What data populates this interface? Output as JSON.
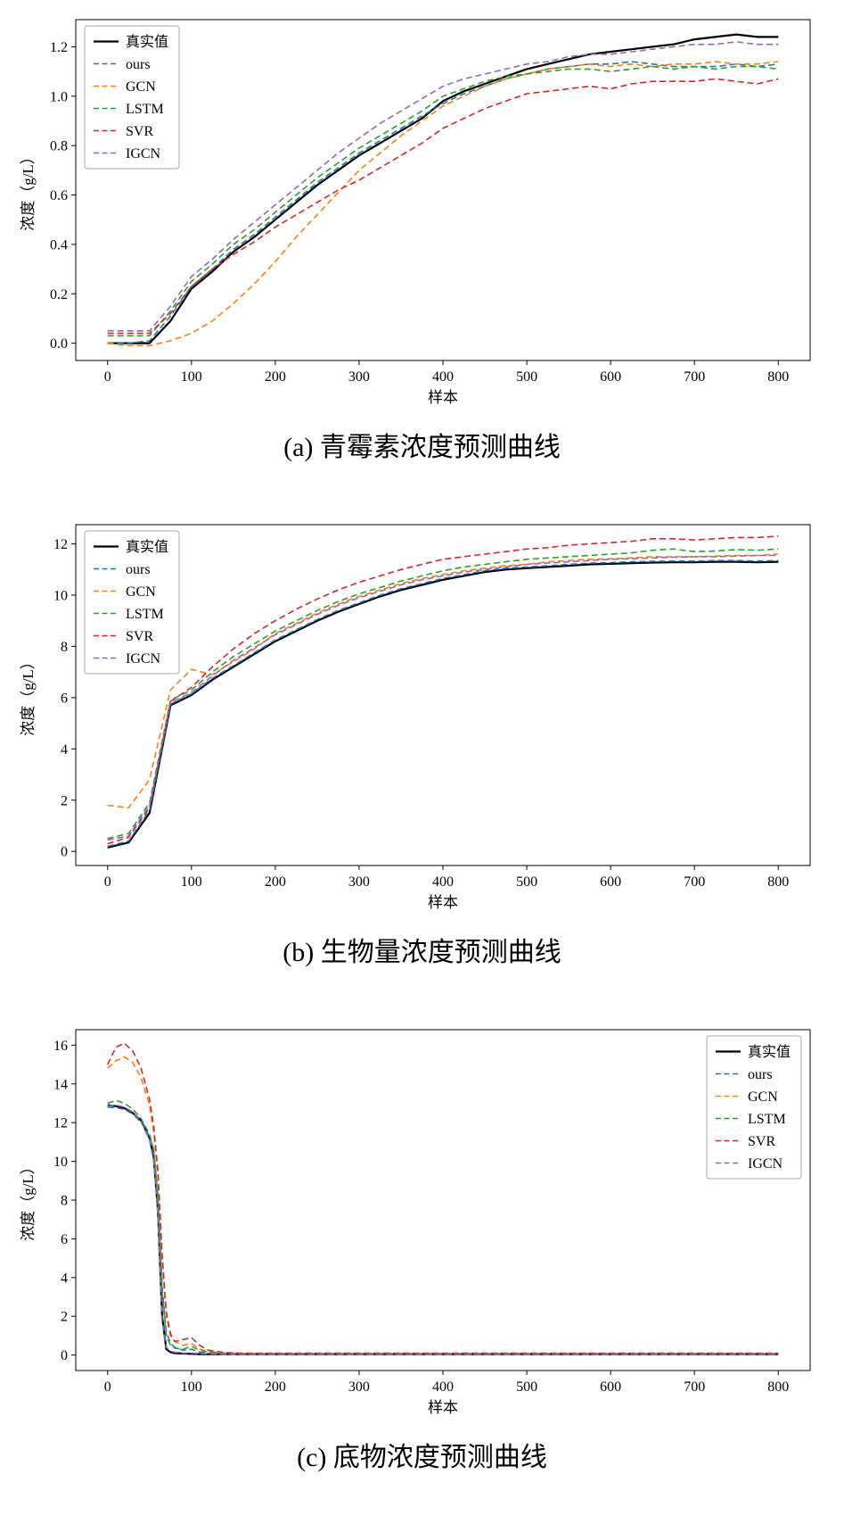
{
  "page": {
    "background": "#ffffff"
  },
  "palette": {
    "true_value": "#000000",
    "ours": "#1f77b4",
    "gcn": "#ff7f0e",
    "lstm": "#2ca02c",
    "svr": "#d62728",
    "igcn": "#9467bd"
  },
  "charts": [
    {
      "caption": "(a) 青霉素浓度预测曲线",
      "chart_data": {
        "type": "line",
        "title": "",
        "xlabel": "样本",
        "ylabel": "浓度（g/L）",
        "xlim": [
          -38,
          838
        ],
        "ylim": [
          -0.07,
          1.31
        ],
        "xticks": [
          0,
          100,
          200,
          300,
          400,
          500,
          600,
          700,
          800
        ],
        "yticks": [
          0,
          0.2,
          0.4,
          0.6,
          0.8,
          1.0,
          1.2
        ],
        "ytick_labels": [
          "0.0",
          "0.2",
          "0.4",
          "0.6",
          "0.8",
          "1.0",
          "1.2"
        ],
        "legend_loc": "upper-left",
        "grid": false,
        "x": [
          0,
          25,
          50,
          75,
          100,
          125,
          150,
          175,
          200,
          225,
          250,
          275,
          300,
          325,
          350,
          375,
          400,
          425,
          450,
          475,
          500,
          525,
          550,
          575,
          600,
          625,
          650,
          675,
          700,
          725,
          750,
          775,
          800
        ],
        "series": [
          {
            "name": "真实值",
            "color": "#000000",
            "dash": false,
            "width": 2.2,
            "y": [
              0.0,
              0.0,
              0.0,
              0.09,
              0.22,
              0.29,
              0.37,
              0.43,
              0.5,
              0.57,
              0.64,
              0.7,
              0.76,
              0.81,
              0.86,
              0.91,
              0.98,
              1.02,
              1.05,
              1.08,
              1.11,
              1.13,
              1.15,
              1.17,
              1.18,
              1.19,
              1.2,
              1.21,
              1.23,
              1.24,
              1.25,
              1.24,
              1.24
            ]
          },
          {
            "name": "ours",
            "color": "#1f77b4",
            "dash": true,
            "width": 1.6,
            "y": [
              0.0,
              0.0,
              0.01,
              0.11,
              0.23,
              0.3,
              0.38,
              0.44,
              0.51,
              0.58,
              0.65,
              0.71,
              0.77,
              0.82,
              0.87,
              0.92,
              0.97,
              1.01,
              1.04,
              1.07,
              1.09,
              1.11,
              1.12,
              1.13,
              1.13,
              1.14,
              1.13,
              1.12,
              1.12,
              1.12,
              1.13,
              1.12,
              1.13
            ]
          },
          {
            "name": "GCN",
            "color": "#ff7f0e",
            "dash": true,
            "width": 1.6,
            "y": [
              0.0,
              -0.01,
              -0.01,
              0.01,
              0.04,
              0.09,
              0.16,
              0.24,
              0.33,
              0.43,
              0.52,
              0.61,
              0.7,
              0.77,
              0.84,
              0.9,
              0.96,
              1.0,
              1.04,
              1.07,
              1.09,
              1.11,
              1.12,
              1.13,
              1.12,
              1.13,
              1.12,
              1.13,
              1.13,
              1.14,
              1.13,
              1.13,
              1.14
            ]
          },
          {
            "name": "LSTM",
            "color": "#2ca02c",
            "dash": true,
            "width": 1.6,
            "y": [
              0.03,
              0.03,
              0.03,
              0.13,
              0.25,
              0.32,
              0.4,
              0.46,
              0.53,
              0.6,
              0.67,
              0.73,
              0.79,
              0.84,
              0.89,
              0.94,
              1.0,
              1.03,
              1.06,
              1.08,
              1.09,
              1.1,
              1.11,
              1.11,
              1.1,
              1.11,
              1.12,
              1.11,
              1.12,
              1.11,
              1.12,
              1.12,
              1.11
            ]
          },
          {
            "name": "SVR",
            "color": "#d62728",
            "dash": true,
            "width": 1.6,
            "y": [
              0.04,
              0.04,
              0.04,
              0.12,
              0.23,
              0.3,
              0.36,
              0.41,
              0.47,
              0.52,
              0.57,
              0.62,
              0.66,
              0.71,
              0.76,
              0.81,
              0.87,
              0.91,
              0.95,
              0.98,
              1.01,
              1.02,
              1.03,
              1.04,
              1.03,
              1.05,
              1.06,
              1.06,
              1.06,
              1.07,
              1.06,
              1.05,
              1.07
            ]
          },
          {
            "name": "IGCN",
            "color": "#9467bd",
            "dash": true,
            "width": 1.6,
            "y": [
              0.05,
              0.05,
              0.05,
              0.15,
              0.27,
              0.34,
              0.42,
              0.49,
              0.56,
              0.63,
              0.7,
              0.77,
              0.83,
              0.89,
              0.94,
              0.99,
              1.04,
              1.07,
              1.09,
              1.11,
              1.13,
              1.14,
              1.16,
              1.17,
              1.17,
              1.18,
              1.19,
              1.2,
              1.21,
              1.21,
              1.22,
              1.21,
              1.21
            ]
          }
        ]
      }
    },
    {
      "caption": "(b) 生物量浓度预测曲线",
      "chart_data": {
        "type": "line",
        "title": "",
        "xlabel": "样本",
        "ylabel": "浓度（g/L）",
        "xlim": [
          -38,
          838
        ],
        "ylim": [
          -0.55,
          12.75
        ],
        "xticks": [
          0,
          100,
          200,
          300,
          400,
          500,
          600,
          700,
          800
        ],
        "yticks": [
          0,
          2,
          4,
          6,
          8,
          10,
          12
        ],
        "ytick_labels": [
          "0",
          "2",
          "4",
          "6",
          "8",
          "10",
          "12"
        ],
        "legend_loc": "upper-left",
        "grid": false,
        "x": [
          0,
          25,
          50,
          75,
          100,
          125,
          150,
          175,
          200,
          225,
          250,
          275,
          300,
          325,
          350,
          375,
          400,
          425,
          450,
          475,
          500,
          525,
          550,
          575,
          600,
          625,
          650,
          675,
          700,
          725,
          750,
          775,
          800
        ],
        "series": [
          {
            "name": "真实值",
            "color": "#000000",
            "dash": false,
            "width": 2.2,
            "y": [
              0.15,
              0.35,
              1.5,
              5.7,
              6.1,
              6.7,
              7.2,
              7.7,
              8.2,
              8.6,
              9.0,
              9.35,
              9.65,
              9.95,
              10.2,
              10.4,
              10.6,
              10.75,
              10.9,
              11.0,
              11.05,
              11.1,
              11.15,
              11.2,
              11.22,
              11.25,
              11.27,
              11.28,
              11.28,
              11.3,
              11.3,
              11.28,
              11.3
            ]
          },
          {
            "name": "ours",
            "color": "#1f77b4",
            "dash": true,
            "width": 1.6,
            "y": [
              0.2,
              0.4,
              1.6,
              5.75,
              6.15,
              6.75,
              7.25,
              7.75,
              8.25,
              8.65,
              9.05,
              9.4,
              9.7,
              10.0,
              10.25,
              10.45,
              10.65,
              10.8,
              10.95,
              11.05,
              11.1,
              11.15,
              11.2,
              11.25,
              11.27,
              11.3,
              11.32,
              11.33,
              11.33,
              11.35,
              11.35,
              11.33,
              11.35
            ]
          },
          {
            "name": "GCN",
            "color": "#ff7f0e",
            "dash": true,
            "width": 1.6,
            "y": [
              1.8,
              1.7,
              2.8,
              6.3,
              7.1,
              6.9,
              7.4,
              7.9,
              8.5,
              8.9,
              9.3,
              9.65,
              9.95,
              10.2,
              10.45,
              10.65,
              10.8,
              10.95,
              11.05,
              11.15,
              11.2,
              11.3,
              11.35,
              11.4,
              11.42,
              11.45,
              11.5,
              11.5,
              11.5,
              11.52,
              11.55,
              11.55,
              11.6
            ]
          },
          {
            "name": "LSTM",
            "color": "#2ca02c",
            "dash": true,
            "width": 1.6,
            "y": [
              0.5,
              0.7,
              1.9,
              5.9,
              6.3,
              7.0,
              7.6,
              8.1,
              8.6,
              9.0,
              9.4,
              9.75,
              10.05,
              10.3,
              10.55,
              10.75,
              10.95,
              11.1,
              11.2,
              11.3,
              11.4,
              11.45,
              11.5,
              11.55,
              11.6,
              11.65,
              11.75,
              11.8,
              11.7,
              11.72,
              11.78,
              11.75,
              11.8
            ]
          },
          {
            "name": "SVR",
            "color": "#d62728",
            "dash": true,
            "width": 1.6,
            "y": [
              0.3,
              0.55,
              1.7,
              5.85,
              6.4,
              7.2,
              7.9,
              8.5,
              9.0,
              9.45,
              9.85,
              10.2,
              10.5,
              10.75,
              11.0,
              11.2,
              11.4,
              11.5,
              11.6,
              11.7,
              11.8,
              11.85,
              11.95,
              12.0,
              12.05,
              12.1,
              12.2,
              12.2,
              12.15,
              12.2,
              12.25,
              12.25,
              12.3
            ]
          },
          {
            "name": "IGCN",
            "color": "#9467bd",
            "dash": true,
            "width": 1.6,
            "y": [
              0.45,
              0.6,
              1.8,
              5.8,
              6.2,
              6.85,
              7.45,
              7.95,
              8.45,
              8.85,
              9.25,
              9.6,
              9.9,
              10.15,
              10.4,
              10.6,
              10.75,
              10.9,
              11.0,
              11.1,
              11.2,
              11.25,
              11.3,
              11.35,
              11.4,
              11.42,
              11.45,
              11.48,
              11.5,
              11.5,
              11.52,
              11.55,
              11.55
            ]
          }
        ]
      }
    },
    {
      "caption": "(c) 底物浓度预测曲线",
      "chart_data": {
        "type": "line",
        "title": "",
        "xlabel": "样本",
        "ylabel": "浓度（g/L）",
        "xlim": [
          -38,
          838
        ],
        "ylim": [
          -0.8,
          16.8
        ],
        "xticks": [
          0,
          100,
          200,
          300,
          400,
          500,
          600,
          700,
          800
        ],
        "yticks": [
          0,
          2,
          4,
          6,
          8,
          10,
          12,
          14,
          16
        ],
        "ytick_labels": [
          "0",
          "2",
          "4",
          "6",
          "8",
          "10",
          "12",
          "14",
          "16"
        ],
        "legend_loc": "upper-right",
        "grid": false,
        "x": [
          0,
          10,
          20,
          30,
          40,
          50,
          55,
          60,
          65,
          70,
          75,
          80,
          90,
          100,
          110,
          120,
          140,
          160,
          180,
          200,
          250,
          300,
          350,
          400,
          450,
          500,
          550,
          600,
          650,
          700,
          750,
          800
        ],
        "series": [
          {
            "name": "真实值",
            "color": "#000000",
            "dash": false,
            "width": 2.2,
            "y": [
              12.9,
              12.85,
              12.75,
              12.5,
              12.1,
              11.2,
              10.2,
              7.5,
              2.0,
              0.3,
              0.15,
              0.1,
              0.08,
              0.06,
              0.05,
              0.05,
              0.05,
              0.05,
              0.05,
              0.05,
              0.05,
              0.05,
              0.05,
              0.05,
              0.05,
              0.05,
              0.05,
              0.05,
              0.05,
              0.05,
              0.05,
              0.05
            ]
          },
          {
            "name": "ours",
            "color": "#1f77b4",
            "dash": true,
            "width": 1.6,
            "y": [
              12.8,
              12.78,
              12.68,
              12.45,
              12.0,
              11.3,
              10.5,
              8.2,
              3.5,
              1.2,
              0.6,
              0.4,
              0.25,
              0.3,
              0.15,
              0.1,
              0.08,
              0.06,
              0.06,
              0.06,
              0.06,
              0.06,
              0.06,
              0.06,
              0.06,
              0.06,
              0.06,
              0.06,
              0.06,
              0.06,
              0.06,
              0.06
            ]
          },
          {
            "name": "GCN",
            "color": "#ff7f0e",
            "dash": true,
            "width": 1.6,
            "y": [
              14.8,
              15.2,
              15.4,
              15.1,
              14.3,
              12.9,
              11.5,
              9.2,
              4.8,
              2.0,
              1.0,
              0.7,
              0.5,
              0.6,
              0.3,
              0.2,
              0.1,
              0.08,
              0.08,
              0.08,
              0.08,
              0.08,
              0.08,
              0.08,
              0.08,
              0.08,
              0.08,
              0.08,
              0.08,
              0.08,
              0.08,
              0.08
            ]
          },
          {
            "name": "LSTM",
            "color": "#2ca02c",
            "dash": true,
            "width": 1.6,
            "y": [
              13.0,
              13.15,
              13.0,
              12.7,
              12.2,
              11.4,
              10.6,
              8.0,
              3.2,
              1.0,
              0.5,
              0.35,
              0.3,
              0.45,
              0.25,
              0.15,
              0.1,
              0.08,
              0.08,
              0.08,
              0.08,
              0.08,
              0.08,
              0.08,
              0.08,
              0.08,
              0.08,
              0.08,
              0.08,
              0.08,
              0.08,
              0.08
            ]
          },
          {
            "name": "SVR",
            "color": "#d62728",
            "dash": true,
            "width": 1.6,
            "y": [
              15.0,
              15.9,
              16.1,
              15.7,
              14.8,
              13.2,
              11.8,
              9.5,
              5.2,
              2.2,
              1.1,
              0.7,
              0.8,
              0.9,
              0.5,
              0.25,
              0.12,
              0.1,
              0.1,
              0.1,
              0.1,
              0.1,
              0.1,
              0.1,
              0.1,
              0.1,
              0.1,
              0.1,
              0.1,
              0.1,
              0.1,
              0.1
            ]
          },
          {
            "name": "IGCN",
            "color": "#9467bd",
            "dash": true,
            "width": 1.6,
            "y": [
              12.85,
              12.9,
              12.8,
              12.55,
              12.05,
              11.1,
              10.0,
              7.2,
              1.8,
              0.4,
              0.2,
              0.15,
              0.1,
              0.1,
              0.08,
              0.06,
              0.05,
              0.05,
              0.05,
              0.05,
              0.05,
              0.05,
              0.05,
              0.05,
              0.05,
              0.05,
              0.05,
              0.05,
              0.05,
              0.05,
              0.05,
              0.05
            ]
          }
        ]
      }
    }
  ]
}
